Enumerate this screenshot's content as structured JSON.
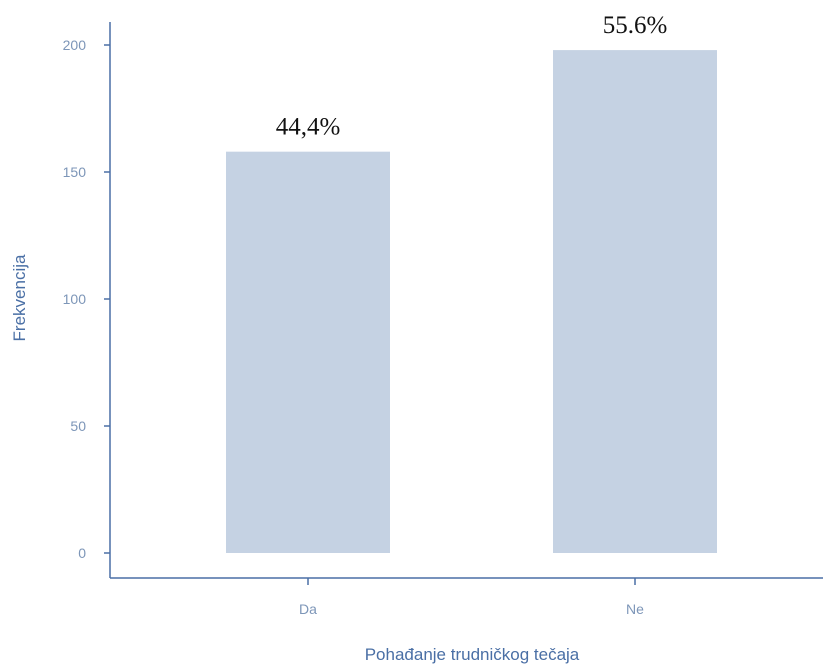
{
  "chart_data": {
    "type": "bar",
    "categories": [
      "Da",
      "Ne"
    ],
    "values": [
      158,
      198
    ],
    "data_labels": [
      "44,4%",
      "55.6%"
    ],
    "xlabel": "Pohađanje trudničkog tečaja",
    "ylabel": "Frekvencija",
    "ylim": [
      0,
      200
    ],
    "yticks": [
      "0",
      "50",
      "100",
      "150",
      "200"
    ],
    "grid": false,
    "colors": {
      "bar": "#c5d2e3",
      "axis": "#4a6fa5",
      "tick_label": "#7d96b8",
      "axis_title": "#4a6fa5",
      "data_label": "#111111"
    }
  }
}
